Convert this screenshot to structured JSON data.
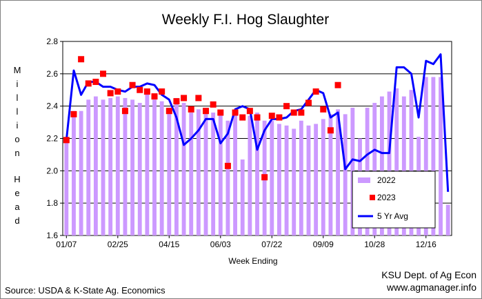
{
  "chart_data": {
    "type": "bar",
    "title": "Weekly F.I. Hog Slaughter",
    "xlabel": "Week Ending",
    "ylabel": "Million Head",
    "ylim": [
      1.6,
      2.8
    ],
    "yticks": [
      "1.6",
      "1.8",
      "2.0",
      "2.2",
      "2.4",
      "2.6",
      "2.8"
    ],
    "xtick_labels": [
      "01/07",
      "02/25",
      "04/15",
      "06/03",
      "07/22",
      "09/09",
      "10/28",
      "12/16"
    ],
    "legend_position": "right",
    "grid": "horizontal",
    "colors": {
      "2022": "#cc99ff",
      "2023": "#ff0000",
      "5 Yr Avg": "#0000ff"
    },
    "series": [
      {
        "name": "2022",
        "type": "bar",
        "values": [
          2.21,
          2.37,
          2.37,
          2.44,
          2.46,
          2.44,
          2.45,
          2.46,
          2.45,
          2.44,
          2.42,
          2.48,
          2.44,
          2.43,
          2.39,
          2.45,
          2.42,
          2.36,
          2.38,
          2.39,
          2.36,
          2.35,
          2.31,
          2.36,
          2.07,
          2.34,
          2.36,
          2.31,
          2.31,
          2.29,
          2.28,
          2.26,
          2.31,
          2.28,
          2.29,
          2.32,
          2.35,
          2.38,
          2.35,
          2.39,
          2.2,
          2.39,
          2.42,
          2.46,
          2.49,
          2.51,
          2.46,
          2.5,
          2.21,
          2.58,
          2.58,
          2.58,
          1.79
        ]
      },
      {
        "name": "2023",
        "type": "scatter",
        "values": [
          2.19,
          2.35,
          2.69,
          2.54,
          2.55,
          2.6,
          2.48,
          2.49,
          2.37,
          2.53,
          2.5,
          2.49,
          2.46,
          2.49,
          2.37,
          2.43,
          2.45,
          2.38,
          2.45,
          2.37,
          2.41,
          2.36,
          2.03,
          2.36,
          2.33,
          2.37,
          2.33,
          1.96,
          2.34,
          2.33,
          2.4,
          2.36,
          2.36,
          2.42,
          2.49,
          2.38,
          2.25,
          2.53,
          null,
          null,
          null,
          null,
          null,
          null,
          null,
          null,
          null,
          null,
          null,
          null,
          null,
          null,
          null
        ]
      },
      {
        "name": "5 Yr Avg",
        "type": "line",
        "values": [
          2.19,
          2.62,
          2.47,
          2.55,
          2.55,
          2.52,
          2.52,
          2.5,
          2.49,
          2.52,
          2.52,
          2.54,
          2.53,
          2.47,
          2.44,
          2.33,
          2.16,
          2.2,
          2.25,
          2.32,
          2.32,
          2.17,
          2.23,
          2.38,
          2.4,
          2.38,
          2.13,
          2.25,
          2.32,
          2.32,
          2.33,
          2.37,
          2.38,
          2.44,
          2.5,
          2.48,
          2.33,
          2.36,
          2.01,
          2.07,
          2.06,
          2.1,
          2.13,
          2.11,
          2.11,
          2.64,
          2.64,
          2.6,
          2.33,
          2.68,
          2.66,
          2.72,
          1.87
        ]
      }
    ]
  },
  "footer": {
    "source": "Source:  USDA & K-State Ag. Economics",
    "credit_line1": "KSU Dept. of Ag Econ",
    "credit_line2": "www.agmanager.info"
  }
}
